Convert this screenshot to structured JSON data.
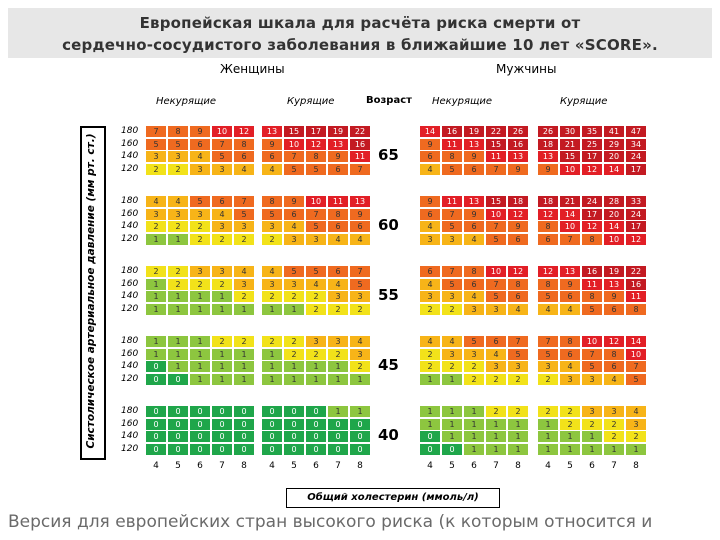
{
  "title": {
    "line1": "Европейская шкала для расчёта риска смерти от",
    "line2": "сердечно-сосудистого заболевания в ближайшие 10 лет «SCORE»."
  },
  "footer": "Версия для европейских стран высокого риска (к которым относится и",
  "chart_data": {
    "type": "heatmap",
    "title": "SCORE",
    "groups": [
      "Женщины",
      "Мужчины"
    ],
    "smoking_labels": [
      "Некурящие",
      "Курящие"
    ],
    "age_header": "Возраст",
    "ages": [
      "65",
      "60",
      "55",
      "45",
      "40"
    ],
    "systolic_bp": [
      "180",
      "160",
      "140",
      "120"
    ],
    "cholesterol": [
      "4",
      "5",
      "6",
      "7",
      "8"
    ],
    "ylabel": "Систолическое артериальное давление (мм рт. ст.)",
    "xlabel": "Общий холестерин (ммоль/л)",
    "color_scale": [
      {
        "max": 0,
        "color": "#1fa64a"
      },
      {
        "max": 1,
        "color": "#8dc63f"
      },
      {
        "max": 2,
        "color": "#f2e21a"
      },
      {
        "max": 4,
        "color": "#f7b418"
      },
      {
        "max": 9,
        "color": "#ef6a20"
      },
      {
        "max": 14,
        "color": "#e21f26"
      },
      {
        "max": 999,
        "color": "#c31a22"
      }
    ],
    "panels": [
      {
        "group": "Женщины",
        "smoking": "Некурящие",
        "age": "65",
        "values": [
          [
            7,
            8,
            9,
            10,
            12
          ],
          [
            5,
            5,
            6,
            7,
            8
          ],
          [
            3,
            3,
            4,
            5,
            6
          ],
          [
            2,
            2,
            3,
            3,
            4
          ]
        ]
      },
      {
        "group": "Женщины",
        "smoking": "Курящие",
        "age": "65",
        "values": [
          [
            13,
            15,
            17,
            19,
            22
          ],
          [
            9,
            10,
            12,
            13,
            16
          ],
          [
            6,
            7,
            8,
            9,
            11
          ],
          [
            4,
            5,
            5,
            6,
            7
          ]
        ]
      },
      {
        "group": "Мужчины",
        "smoking": "Некурящие",
        "age": "65",
        "values": [
          [
            14,
            16,
            19,
            22,
            26
          ],
          [
            9,
            11,
            13,
            15,
            16
          ],
          [
            6,
            8,
            9,
            11,
            13
          ],
          [
            4,
            5,
            6,
            7,
            9
          ]
        ]
      },
      {
        "group": "Мужчины",
        "smoking": "Курящие",
        "age": "65",
        "values": [
          [
            26,
            30,
            35,
            41,
            47
          ],
          [
            18,
            21,
            25,
            29,
            34
          ],
          [
            13,
            15,
            17,
            20,
            24
          ],
          [
            9,
            10,
            12,
            14,
            17
          ]
        ]
      },
      {
        "group": "Женщины",
        "smoking": "Некурящие",
        "age": "60",
        "values": [
          [
            4,
            4,
            5,
            6,
            7
          ],
          [
            3,
            3,
            3,
            4,
            5
          ],
          [
            2,
            2,
            2,
            3,
            3
          ],
          [
            1,
            1,
            2,
            2,
            2
          ]
        ]
      },
      {
        "group": "Женщины",
        "smoking": "Курящие",
        "age": "60",
        "values": [
          [
            8,
            9,
            10,
            11,
            13
          ],
          [
            5,
            6,
            7,
            8,
            9
          ],
          [
            3,
            4,
            5,
            6,
            6
          ],
          [
            2,
            3,
            3,
            4,
            4
          ]
        ]
      },
      {
        "group": "Мужчины",
        "smoking": "Некурящие",
        "age": "60",
        "values": [
          [
            9,
            11,
            13,
            15,
            18
          ],
          [
            6,
            7,
            9,
            10,
            12
          ],
          [
            4,
            5,
            6,
            7,
            9
          ],
          [
            3,
            3,
            4,
            5,
            6
          ]
        ]
      },
      {
        "group": "Мужчины",
        "smoking": "Курящие",
        "age": "60",
        "values": [
          [
            18,
            21,
            24,
            28,
            33
          ],
          [
            12,
            14,
            17,
            20,
            24
          ],
          [
            8,
            10,
            12,
            14,
            17
          ],
          [
            6,
            7,
            8,
            10,
            12
          ]
        ]
      },
      {
        "group": "Женщины",
        "smoking": "Некурящие",
        "age": "55",
        "values": [
          [
            2,
            2,
            3,
            3,
            4
          ],
          [
            1,
            2,
            2,
            2,
            3
          ],
          [
            1,
            1,
            1,
            1,
            2
          ],
          [
            1,
            1,
            1,
            1,
            1
          ]
        ]
      },
      {
        "group": "Женщины",
        "smoking": "Курящие",
        "age": "55",
        "values": [
          [
            4,
            5,
            5,
            6,
            7
          ],
          [
            3,
            3,
            4,
            4,
            5
          ],
          [
            2,
            2,
            2,
            3,
            3
          ],
          [
            1,
            1,
            2,
            2,
            2
          ]
        ]
      },
      {
        "group": "Мужчины",
        "smoking": "Некурящие",
        "age": "55",
        "values": [
          [
            6,
            7,
            8,
            10,
            12
          ],
          [
            4,
            5,
            6,
            7,
            8
          ],
          [
            3,
            3,
            4,
            5,
            6
          ],
          [
            2,
            2,
            3,
            3,
            4
          ]
        ]
      },
      {
        "group": "Мужчины",
        "smoking": "Курящие",
        "age": "55",
        "values": [
          [
            12,
            13,
            16,
            19,
            22
          ],
          [
            8,
            9,
            11,
            13,
            16
          ],
          [
            5,
            6,
            8,
            9,
            11
          ],
          [
            4,
            4,
            5,
            6,
            8
          ]
        ]
      },
      {
        "group": "Женщины",
        "smoking": "Некурящие",
        "age": "45",
        "values": [
          [
            1,
            1,
            1,
            2,
            2
          ],
          [
            1,
            1,
            1,
            1,
            1
          ],
          [
            0,
            1,
            1,
            1,
            1
          ],
          [
            0,
            0,
            1,
            1,
            1
          ]
        ]
      },
      {
        "group": "Женщины",
        "smoking": "Курящие",
        "age": "45",
        "values": [
          [
            2,
            2,
            3,
            3,
            4
          ],
          [
            1,
            2,
            2,
            2,
            3
          ],
          [
            1,
            1,
            1,
            1,
            2
          ],
          [
            1,
            1,
            1,
            1,
            1
          ]
        ]
      },
      {
        "group": "Мужчины",
        "smoking": "Некурящие",
        "age": "45",
        "values": [
          [
            4,
            4,
            5,
            6,
            7
          ],
          [
            2,
            3,
            3,
            4,
            5
          ],
          [
            2,
            2,
            2,
            3,
            3
          ],
          [
            1,
            1,
            2,
            2,
            2
          ]
        ]
      },
      {
        "group": "Мужчины",
        "smoking": "Курящие",
        "age": "45",
        "values": [
          [
            7,
            8,
            10,
            12,
            14
          ],
          [
            5,
            6,
            7,
            8,
            10
          ],
          [
            3,
            4,
            5,
            6,
            7
          ],
          [
            2,
            3,
            3,
            4,
            5
          ]
        ]
      },
      {
        "group": "Женщины",
        "smoking": "Некурящие",
        "age": "40",
        "values": [
          [
            0,
            0,
            0,
            0,
            0
          ],
          [
            0,
            0,
            0,
            0,
            0
          ],
          [
            0,
            0,
            0,
            0,
            0
          ],
          [
            0,
            0,
            0,
            0,
            0
          ]
        ]
      },
      {
        "group": "Женщины",
        "smoking": "Курящие",
        "age": "40",
        "values": [
          [
            0,
            0,
            0,
            1,
            1
          ],
          [
            0,
            0,
            0,
            0,
            0
          ],
          [
            0,
            0,
            0,
            0,
            0
          ],
          [
            0,
            0,
            0,
            0,
            0
          ]
        ]
      },
      {
        "group": "Мужчины",
        "smoking": "Некурящие",
        "age": "40",
        "values": [
          [
            1,
            1,
            1,
            2,
            2
          ],
          [
            1,
            1,
            1,
            1,
            1
          ],
          [
            0,
            1,
            1,
            1,
            1
          ],
          [
            0,
            0,
            1,
            1,
            1
          ]
        ]
      },
      {
        "group": "Мужчины",
        "smoking": "Курящие",
        "age": "40",
        "values": [
          [
            2,
            2,
            3,
            3,
            4
          ],
          [
            1,
            2,
            2,
            2,
            3
          ],
          [
            1,
            1,
            1,
            2,
            2
          ],
          [
            1,
            1,
            1,
            1,
            1
          ]
        ]
      }
    ]
  }
}
